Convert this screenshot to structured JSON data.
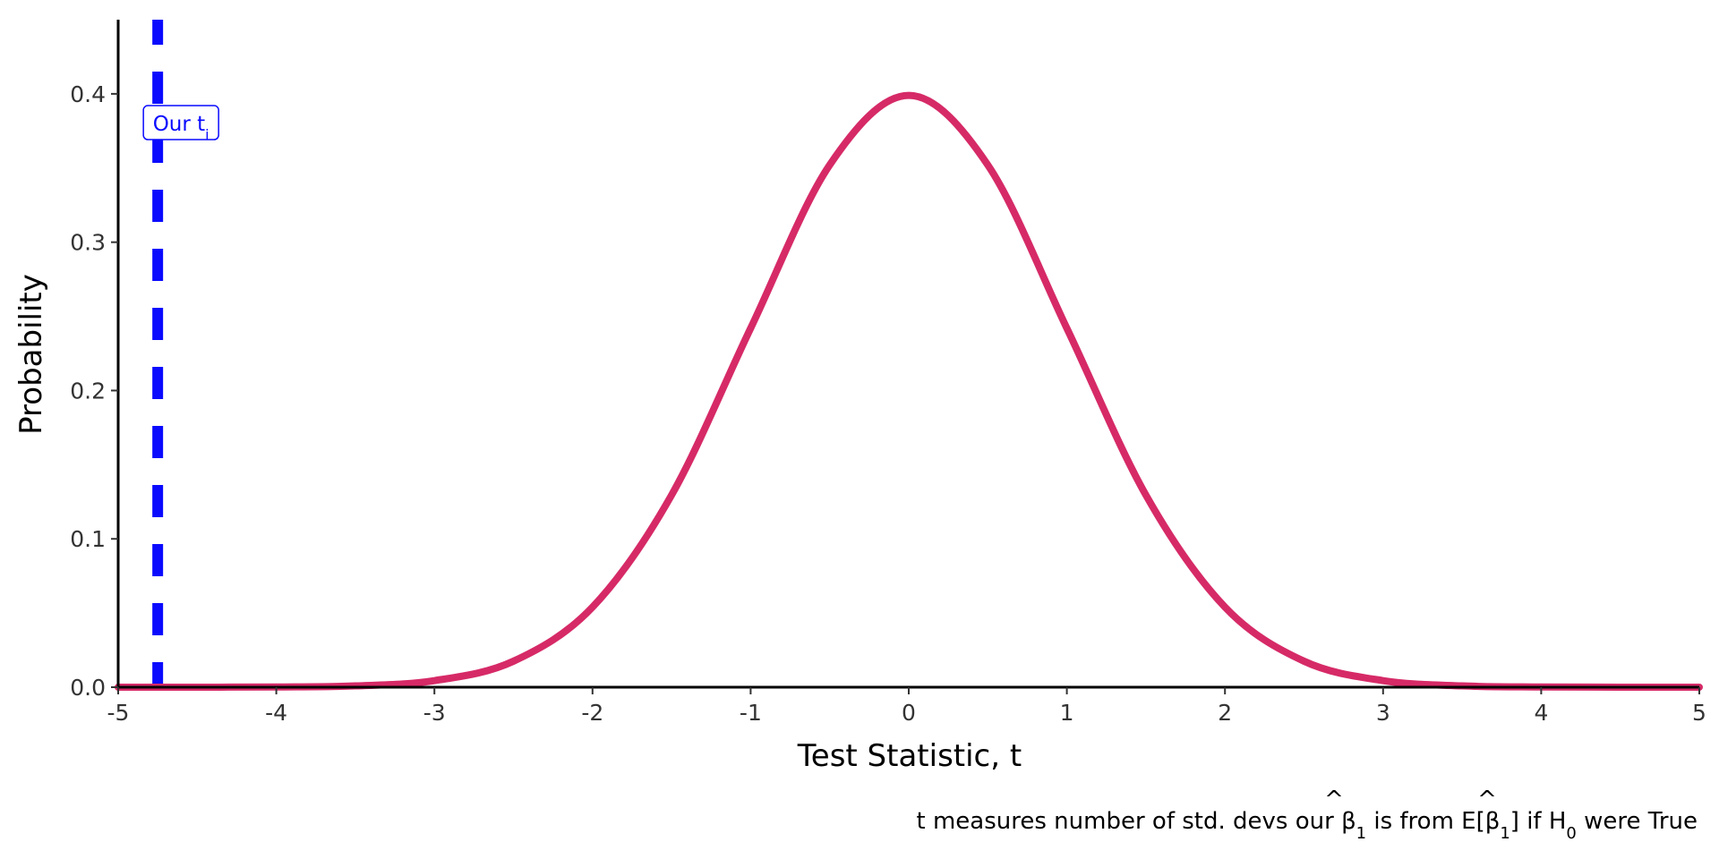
{
  "chart_data": {
    "type": "line",
    "title": "",
    "xlabel": "Test Statistic, t",
    "ylabel": "Probability",
    "xlim": [
      -5,
      5
    ],
    "ylim": [
      0,
      0.45
    ],
    "x_ticks": [
      -5,
      -4,
      -3,
      -2,
      -1,
      0,
      1,
      2,
      3,
      4,
      5
    ],
    "x_tick_labels": [
      "-5",
      "-4",
      "-3",
      "-2",
      "-1",
      "0",
      "1",
      "2",
      "3",
      "4",
      "5"
    ],
    "y_ticks": [
      0,
      0.1,
      0.2,
      0.3,
      0.4
    ],
    "y_tick_labels": [
      "0.0",
      "0.1",
      "0.2",
      "0.3",
      "0.4"
    ],
    "grid": false,
    "series": [
      {
        "distribution": "standard normal density",
        "color": "#d62a67",
        "x": [
          -5,
          -4.5,
          -4,
          -3.5,
          -3,
          -2.5,
          -2,
          -1.5,
          -1,
          -0.5,
          0,
          0.5,
          1,
          1.5,
          2,
          2.5,
          3,
          3.5,
          4,
          4.5,
          5
        ],
        "values": [
          1.5e-06,
          1.6e-05,
          0.000134,
          0.000873,
          0.00443,
          0.01753,
          0.05399,
          0.12952,
          0.24197,
          0.35207,
          0.39894,
          0.35207,
          0.24197,
          0.12952,
          0.05399,
          0.01753,
          0.00443,
          0.000873,
          0.000134,
          1.6e-05,
          1.5e-06
        ]
      }
    ],
    "reference_line": {
      "orientation": "vertical",
      "x": -4.75,
      "style": "dashed",
      "color": "#0a0aff"
    },
    "annotation": {
      "text_main": "Our t",
      "text_sub": "i",
      "x": -4.75,
      "y": 0.38,
      "color": "#0a0aff"
    },
    "caption": {
      "p1": "t measures number of std. devs our ",
      "hat1": "^",
      "beta1": "β",
      "sub1": "1",
      "p2": " is from E[",
      "hat2": "^",
      "beta2": "β",
      "sub2": "1",
      "p3": "] if H",
      "sub3": "0",
      "p4": " were True"
    }
  }
}
